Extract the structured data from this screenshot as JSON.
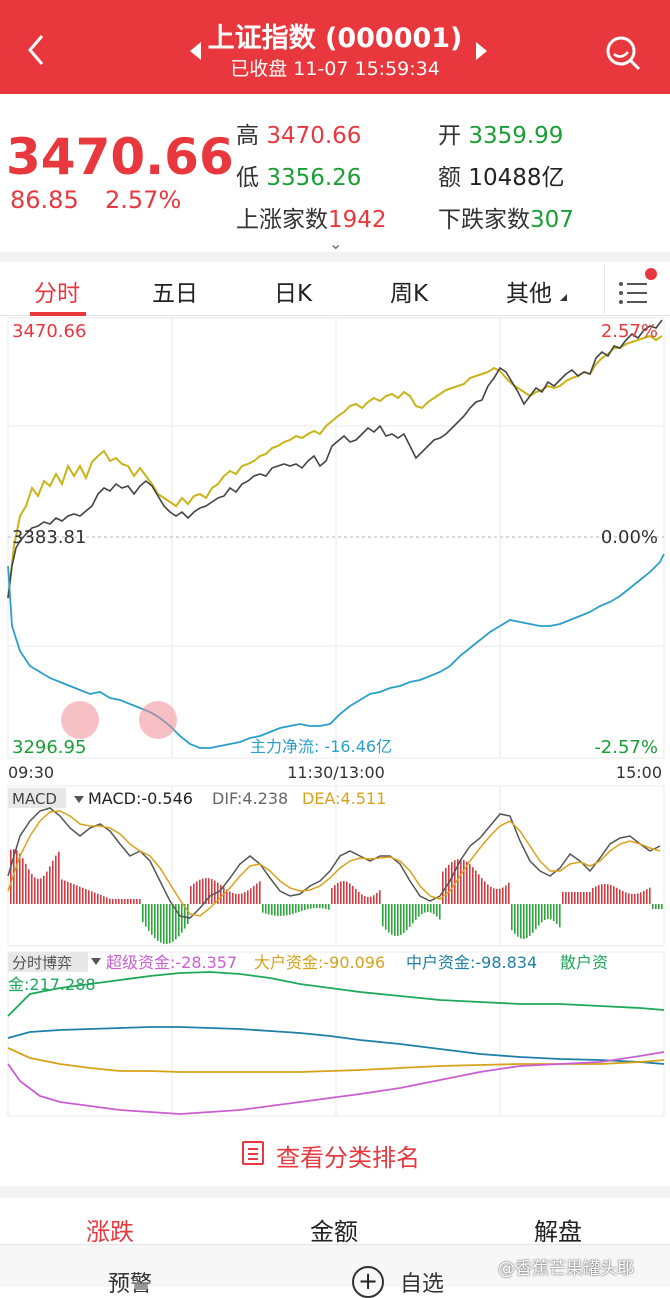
{
  "header": {
    "title": "上证指数 (000001)",
    "subtitle": "已收盘 11-07 15:59:34"
  },
  "quote": {
    "price": "3470.66",
    "change": "86.85",
    "change_pct": "2.57%",
    "high_label": "高",
    "high": "3470.66",
    "open_label": "开",
    "open": "3359.99",
    "low_label": "低",
    "low": "3356.26",
    "amount_label": "额",
    "amount": "10488亿",
    "up_label": "上涨家数",
    "up_count": "1942",
    "down_label": "下跌家数",
    "down_count": "307"
  },
  "tabs": [
    "分时",
    "五日",
    "日K",
    "周K",
    "其他"
  ],
  "intraday": {
    "top_price": "3470.66",
    "top_pct": "2.57%",
    "mid_price": "3383.81",
    "mid_pct": "0.00%",
    "bottom_price": "3296.95",
    "bottom_pct": "-2.57%",
    "main_flow": "主力净流: -16.46亿",
    "time_start": "09:30",
    "time_mid": "11:30/13:00",
    "time_end": "15:00"
  },
  "macd": {
    "label": "MACD",
    "macd": "MACD:-0.546",
    "dif": "DIF:4.238",
    "dea": "DEA:4.511"
  },
  "game": {
    "label": "分时博弈",
    "super": "超级资金:-28.357",
    "large": "大户资金:-90.096",
    "medium": "中户资金:-98.834",
    "retail_a": "散户资",
    "retail_b": "金:217.288"
  },
  "category_button": "查看分类排名",
  "bottom_tabs": [
    "涨跌",
    "金额",
    "解盘"
  ],
  "bottom_bar": {
    "left": "预警",
    "mid": "自选"
  },
  "watermark": "@香蕉芒果罐头耶",
  "colors": {
    "accent": "#e8383d",
    "up": "#e8383d",
    "down": "#1a9e36",
    "price_line": "#444444",
    "avg_line": "#c9b41a",
    "flow_line": "#2a9fc9",
    "macd_dif": "#555555",
    "macd_dea": "#d9a21b",
    "super_color": "#c95fd0",
    "large_color": "#d6a21a",
    "medium_color": "#1f7fa8",
    "retail_color": "#1ea85a"
  }
}
